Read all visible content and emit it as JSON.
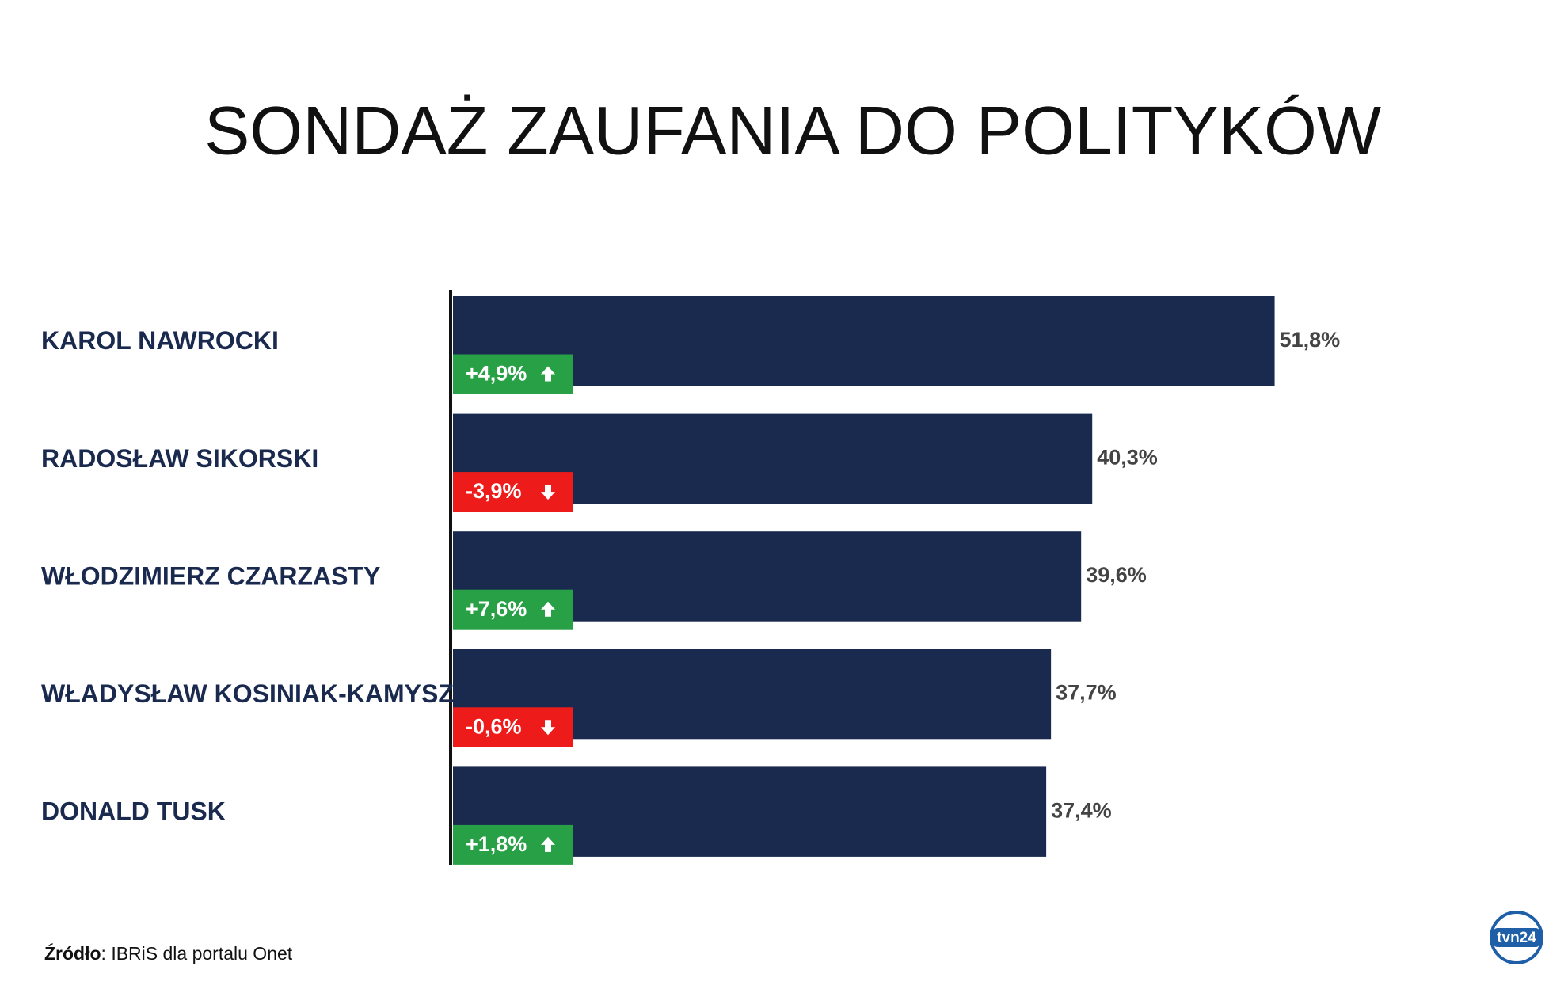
{
  "chart_data": {
    "type": "bar",
    "orientation": "horizontal",
    "title": "SONDAŻ ZAUFANIA DO POLITYKÓW",
    "categories": [
      "KAROL NAWROCKI",
      "RADOSŁAW SIKORSKI",
      "WŁODZIMIERZ CZARZASTY",
      "WŁADYSŁAW KOSINIAK-KAMYSZ",
      "DONALD TUSK"
    ],
    "values": [
      51.8,
      40.3,
      39.6,
      37.7,
      37.4
    ],
    "value_labels": [
      "51,8%",
      "40,3%",
      "39,6%",
      "37,7%",
      "37,4%"
    ],
    "color": "#1a2a4f",
    "change": {
      "values": [
        4.9,
        -3.9,
        7.6,
        -0.6,
        1.8
      ],
      "value_labels": [
        "+4,9%",
        "-3,9%",
        "+7,6%",
        "-0,6%",
        "+1,8%"
      ],
      "positive_color": "#27a046",
      "negative_color": "#ee1b1b"
    }
  },
  "source": {
    "label": "Źródło",
    "text": ": IBRiS dla portalu Onet"
  },
  "logo": "tvn24"
}
